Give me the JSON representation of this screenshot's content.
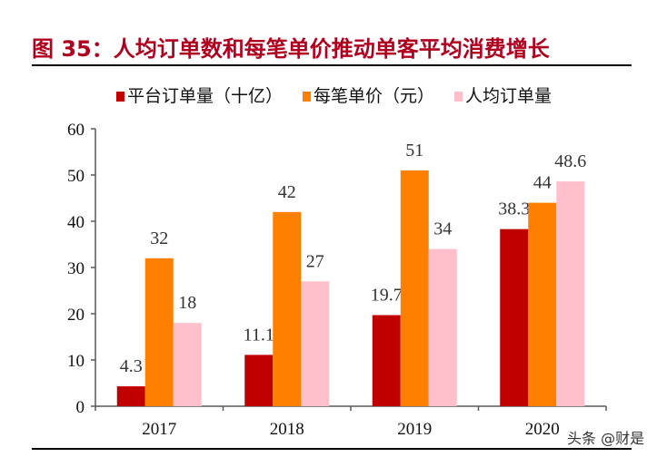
{
  "title": "图 35：人均订单数和每笔单价推动单客平均消费增长",
  "watermark": "头条 @财是",
  "chart_data": {
    "type": "bar",
    "title": "图 35：人均订单数和每笔单价推动单客平均消费增长",
    "categories": [
      "2017",
      "2018",
      "2019",
      "2020"
    ],
    "series": [
      {
        "name": "平台订单量（十亿）",
        "color": "#C00000",
        "values": [
          4.3,
          11.1,
          19.7,
          38.3
        ],
        "labels": [
          "4.3",
          "11.1",
          "19.7",
          "38.3"
        ]
      },
      {
        "name": "每笔单价（元）",
        "color": "#FF8000",
        "values": [
          32,
          42,
          51,
          44
        ],
        "labels": [
          "32",
          "42",
          "51",
          "44"
        ]
      },
      {
        "name": "人均订单量",
        "color": "#FFC0CB",
        "values": [
          18,
          27,
          34,
          48.6
        ],
        "labels": [
          "18",
          "27",
          "34",
          "48.6"
        ]
      }
    ],
    "ylim": [
      0,
      60
    ],
    "yticks": [
      0,
      10,
      20,
      30,
      40,
      50,
      60
    ],
    "grid": false,
    "legend": "top"
  }
}
